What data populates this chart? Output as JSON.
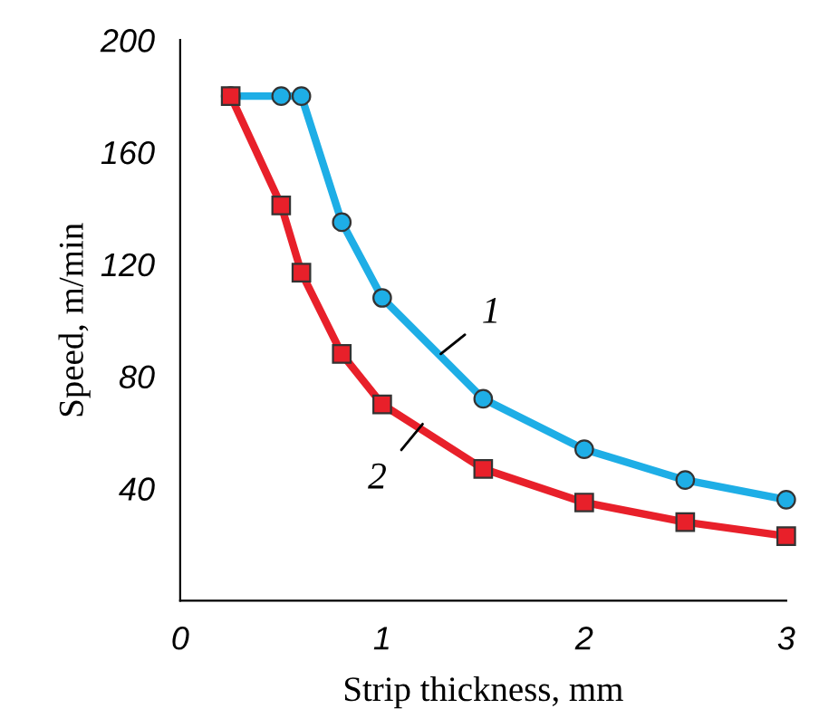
{
  "chart_data": {
    "type": "line",
    "xlabel": "Strip thickness, mm",
    "ylabel": "Speed, m/min",
    "xlim": [
      0,
      3
    ],
    "ylim": [
      0,
      200
    ],
    "xticks": [
      0,
      1,
      2,
      3
    ],
    "yticks": [
      40,
      80,
      120,
      160,
      200
    ],
    "grid": false,
    "legend": false,
    "series": [
      {
        "color": "#1eaee6",
        "marker": "circle",
        "x": [
          0.25,
          0.5,
          0.6,
          0.8,
          1,
          1.5,
          2,
          2.5,
          3
        ],
        "values": [
          180,
          180,
          180,
          135,
          108,
          72,
          54,
          43,
          36
        ]
      },
      {
        "color": "#e8202a",
        "marker": "square",
        "x": [
          0.25,
          0.5,
          0.6,
          0.8,
          1,
          1.5,
          2,
          2.5,
          3
        ],
        "values": [
          180,
          141,
          117,
          88,
          70,
          47,
          35,
          28,
          23
        ]
      }
    ],
    "annotations": [
      {
        "text": "1",
        "x": 1.29,
        "y": 88
      },
      {
        "text": "2",
        "x": 1.2,
        "y": 63
      }
    ]
  }
}
